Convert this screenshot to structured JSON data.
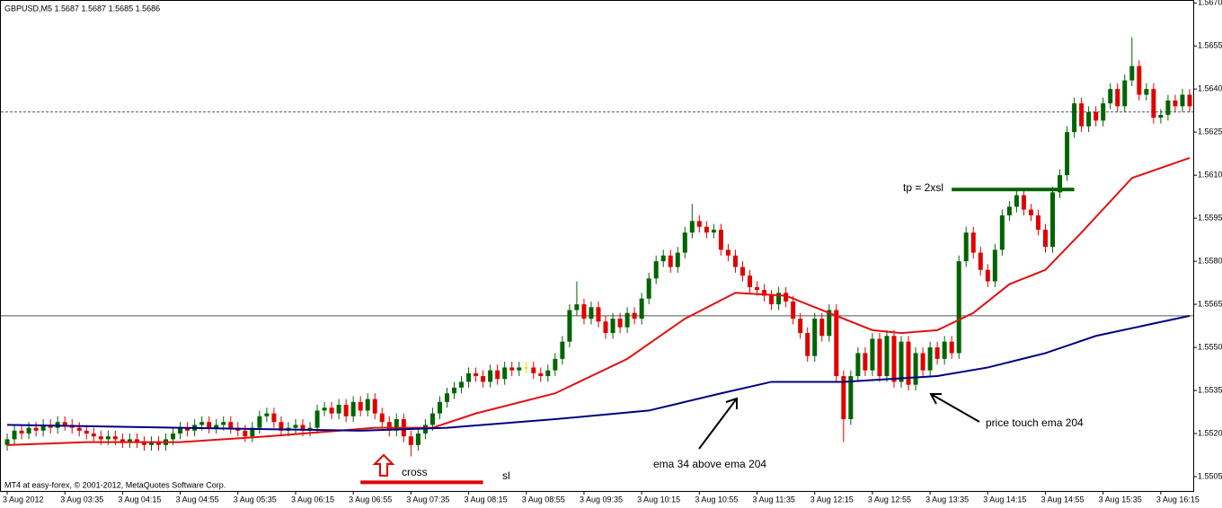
{
  "chart_data": {
    "type": "candlestick",
    "header": "GBPUSD,M5  1.5687 1.5687 1.5685 1.5686",
    "footer": "MT4 at easy-forex, © 2001-2012, MetaQuotes Software Corp.",
    "annotations": {
      "cross": "cross",
      "sl": "sl",
      "tp": "tp = 2xsl",
      "ema_above": "ema 34 above ema 204",
      "price_touch": "price touch ema 204"
    },
    "up_color": "#006400",
    "down_color": "#e00000",
    "flat_color": "#e6d800",
    "categories": [
      "3 Aug 2012",
      null,
      null,
      null,
      null,
      null,
      null,
      null,
      "3 Aug 03:35",
      null,
      null,
      null,
      null,
      null,
      null,
      null,
      "3 Aug 04:15",
      null,
      null,
      null,
      null,
      null,
      null,
      null,
      "3 Aug 04:55",
      null,
      null,
      null,
      null,
      null,
      null,
      null,
      "3 Aug 05:35",
      null,
      null,
      null,
      null,
      null,
      null,
      null,
      "3 Aug 06:15",
      null,
      null,
      null,
      null,
      null,
      null,
      null,
      "3 Aug 06:55",
      null,
      null,
      null,
      null,
      null,
      null,
      null,
      "3 Aug 07:35",
      null,
      null,
      null,
      null,
      null,
      null,
      null,
      "3 Aug 08:15",
      null,
      null,
      null,
      null,
      null,
      null,
      null,
      "3 Aug 08:55",
      null,
      null,
      null,
      null,
      null,
      null,
      null,
      "3 Aug 09:35",
      null,
      null,
      null,
      null,
      null,
      null,
      null,
      "3 Aug 10:15",
      null,
      null,
      null,
      null,
      null,
      null,
      null,
      "3 Aug 10:55",
      null,
      null,
      null,
      null,
      null,
      null,
      null,
      "3 Aug 11:35",
      null,
      null,
      null,
      null,
      null,
      null,
      null,
      "3 Aug 12:15",
      null,
      null,
      null,
      null,
      null,
      null,
      null,
      "3 Aug 12:55",
      null,
      null,
      null,
      null,
      null,
      null,
      null,
      "3 Aug 13:35",
      null,
      null,
      null,
      null,
      null,
      null,
      null,
      "3 Aug 14:15",
      null,
      null,
      null,
      null,
      null,
      null,
      null,
      "3 Aug 14:55",
      null,
      null,
      null,
      null,
      null,
      null,
      null,
      "3 Aug 15:35",
      null,
      null,
      null,
      null,
      null,
      null,
      null,
      "3 Aug 16:15",
      null,
      null,
      null,
      null
    ],
    "open": [
      1.5516,
      1.5518,
      1.5521,
      1.552,
      1.5522,
      1.5521,
      1.5523,
      1.5522,
      1.5524,
      1.5523,
      1.5522,
      1.5521,
      1.552,
      1.5519,
      1.5518,
      1.5519,
      1.5518,
      1.5517,
      1.5518,
      1.5517,
      1.5516,
      1.5517,
      1.5516,
      1.5518,
      1.552,
      1.5522,
      1.5521,
      1.5523,
      1.5524,
      1.5522,
      1.5523,
      1.5524,
      1.5522,
      1.5521,
      1.5519,
      1.5522,
      1.5526,
      1.5527,
      1.5524,
      1.5521,
      1.5522,
      1.5523,
      1.5521,
      1.5522,
      1.5528,
      1.5529,
      1.5527,
      1.553,
      1.5526,
      1.5531,
      1.5528,
      1.5532,
      1.5527,
      1.5524,
      1.5521,
      1.5525,
      1.5519,
      1.5516,
      1.552,
      1.5523,
      1.5527,
      1.5531,
      1.5534,
      1.5536,
      1.5538,
      1.5541,
      1.554,
      1.5538,
      1.5542,
      1.5539,
      1.5543,
      1.5542,
      1.5543,
      1.5543,
      1.5541,
      1.554,
      1.5542,
      1.5546,
      1.5552,
      1.5563,
      1.5565,
      1.556,
      1.5564,
      1.5559,
      1.5555,
      1.556,
      1.5557,
      1.5562,
      1.556,
      1.5567,
      1.5574,
      1.558,
      1.5582,
      1.5578,
      1.5583,
      1.559,
      1.5594,
      1.5592,
      1.559,
      1.5591,
      1.5584,
      1.5582,
      1.5578,
      1.5575,
      1.5571,
      1.557,
      1.5568,
      1.5565,
      1.5569,
      1.5566,
      1.556,
      1.5555,
      1.5547,
      1.556,
      1.5554,
      1.5563,
      1.554,
      1.5525,
      1.554,
      1.5548,
      1.5542,
      1.5553,
      1.554,
      1.5554,
      1.5538,
      1.5552,
      1.5537,
      1.5548,
      1.5542,
      1.555,
      1.5546,
      1.5552,
      1.5548,
      1.558,
      1.559,
      1.5583,
      1.5577,
      1.5573,
      1.5584,
      1.5596,
      1.5599,
      1.5603,
      1.5598,
      1.5596,
      1.5591,
      1.5585,
      1.5604,
      1.561,
      1.5625,
      1.5635,
      1.5627,
      1.5632,
      1.5629,
      1.5635,
      1.564,
      1.5634,
      1.5643,
      1.5648,
      1.5638,
      1.564,
      1.563,
      1.5631,
      1.5636,
      1.5634,
      1.5638
    ],
    "high": [
      1.552,
      1.5523,
      1.5523,
      1.5524,
      1.5524,
      1.5525,
      1.5525,
      1.5526,
      1.5526,
      1.5525,
      1.5524,
      1.5523,
      1.5522,
      1.5521,
      1.5521,
      1.5521,
      1.552,
      1.552,
      1.552,
      1.5519,
      1.5519,
      1.5519,
      1.552,
      1.5522,
      1.5524,
      1.5524,
      1.5525,
      1.5526,
      1.5526,
      1.5525,
      1.5526,
      1.5526,
      1.5524,
      1.5523,
      1.5524,
      1.5528,
      1.5529,
      1.5529,
      1.5526,
      1.5524,
      1.5525,
      1.5525,
      1.5524,
      1.553,
      1.5531,
      1.5531,
      1.5532,
      1.5532,
      1.5533,
      1.5533,
      1.5534,
      1.5534,
      1.5529,
      1.5526,
      1.5527,
      1.5527,
      1.5521,
      1.5522,
      1.5525,
      1.5529,
      1.5533,
      1.5536,
      1.5538,
      1.554,
      1.5543,
      1.5543,
      1.5542,
      1.5544,
      1.5544,
      1.5545,
      1.5545,
      1.5545,
      1.5545,
      1.5545,
      1.5543,
      1.5544,
      1.5548,
      1.5554,
      1.5565,
      1.5573,
      1.5567,
      1.5566,
      1.5566,
      1.5561,
      1.5562,
      1.5562,
      1.5564,
      1.5564,
      1.5569,
      1.5576,
      1.5582,
      1.5584,
      1.5584,
      1.5585,
      1.5592,
      1.56,
      1.5596,
      1.5594,
      1.5593,
      1.5593,
      1.5586,
      1.5584,
      1.558,
      1.5577,
      1.5573,
      1.5572,
      1.557,
      1.5571,
      1.5571,
      1.5568,
      1.5562,
      1.5557,
      1.5562,
      1.5562,
      1.5565,
      1.5565,
      1.5542,
      1.5542,
      1.555,
      1.555,
      1.5555,
      1.5555,
      1.5556,
      1.5556,
      1.5554,
      1.5554,
      1.555,
      1.555,
      1.5552,
      1.5552,
      1.5554,
      1.5554,
      1.5582,
      1.5592,
      1.5592,
      1.5585,
      1.5579,
      1.5586,
      1.5598,
      1.5601,
      1.5605,
      1.5605,
      1.56,
      1.5598,
      1.5593,
      1.5606,
      1.5612,
      1.5627,
      1.5637,
      1.5637,
      1.5634,
      1.5634,
      1.5637,
      1.5642,
      1.5642,
      1.5645,
      1.5658,
      1.565,
      1.5642,
      1.5642,
      1.5633,
      1.5638,
      1.5638,
      1.564,
      1.564
    ],
    "low": [
      1.5514,
      1.5516,
      1.5518,
      1.5518,
      1.5519,
      1.5519,
      1.552,
      1.552,
      1.5521,
      1.552,
      1.5519,
      1.5518,
      1.5517,
      1.5516,
      1.5516,
      1.5516,
      1.5515,
      1.5515,
      1.5515,
      1.5514,
      1.5514,
      1.5514,
      1.5514,
      1.5516,
      1.5518,
      1.5519,
      1.5519,
      1.5521,
      1.552,
      1.552,
      1.5521,
      1.552,
      1.5519,
      1.5517,
      1.5517,
      1.552,
      1.5524,
      1.5522,
      1.5519,
      1.5519,
      1.552,
      1.5519,
      1.5519,
      1.552,
      1.5526,
      1.5525,
      1.5525,
      1.5524,
      1.5524,
      1.5526,
      1.5526,
      1.5525,
      1.5522,
      1.5519,
      1.5519,
      1.5517,
      1.5512,
      1.5514,
      1.5518,
      1.5521,
      1.5525,
      1.5529,
      1.5532,
      1.5534,
      1.5536,
      1.5538,
      1.5536,
      1.5536,
      1.5537,
      1.5537,
      1.554,
      1.554,
      1.5541,
      1.5539,
      1.5538,
      1.5538,
      1.554,
      1.5544,
      1.555,
      1.5561,
      1.5558,
      1.5558,
      1.5557,
      1.5553,
      1.5553,
      1.5555,
      1.5555,
      1.5558,
      1.5558,
      1.5565,
      1.5572,
      1.5578,
      1.5576,
      1.5576,
      1.5581,
      1.5588,
      1.559,
      1.5588,
      1.5588,
      1.5582,
      1.558,
      1.5576,
      1.5573,
      1.5569,
      1.5568,
      1.5566,
      1.5563,
      1.5563,
      1.5564,
      1.5558,
      1.5553,
      1.5545,
      1.5545,
      1.5552,
      1.5552,
      1.5538,
      1.5517,
      1.5523,
      1.5538,
      1.554,
      1.554,
      1.5538,
      1.5538,
      1.5536,
      1.5536,
      1.5535,
      1.5535,
      1.554,
      1.554,
      1.5544,
      1.5544,
      1.5546,
      1.5546,
      1.5578,
      1.5581,
      1.5575,
      1.5571,
      1.5571,
      1.5582,
      1.5594,
      1.5597,
      1.5596,
      1.5594,
      1.5589,
      1.5583,
      1.5583,
      1.5602,
      1.5608,
      1.5623,
      1.5625,
      1.5625,
      1.5627,
      1.5627,
      1.5633,
      1.5632,
      1.5632,
      1.5641,
      1.5636,
      1.5636,
      1.5628,
      1.5628,
      1.5629,
      1.5632,
      1.5632,
      1.5632
    ],
    "close": [
      1.5518,
      1.5521,
      1.552,
      1.5522,
      1.5521,
      1.5523,
      1.5522,
      1.5524,
      1.5523,
      1.5522,
      1.5521,
      1.552,
      1.5519,
      1.5518,
      1.5519,
      1.5518,
      1.5517,
      1.5518,
      1.5517,
      1.5516,
      1.5517,
      1.5516,
      1.5518,
      1.552,
      1.5522,
      1.5521,
      1.5523,
      1.5524,
      1.5522,
      1.5523,
      1.5524,
      1.5522,
      1.5521,
      1.5519,
      1.5522,
      1.5526,
      1.5527,
      1.5524,
      1.5521,
      1.5522,
      1.5523,
      1.5521,
      1.5522,
      1.5528,
      1.5529,
      1.5527,
      1.553,
      1.5526,
      1.5531,
      1.5528,
      1.5532,
      1.5527,
      1.5524,
      1.5521,
      1.5525,
      1.5519,
      1.5516,
      1.552,
      1.5523,
      1.5527,
      1.5531,
      1.5534,
      1.5536,
      1.5538,
      1.5541,
      1.554,
      1.5538,
      1.5542,
      1.5539,
      1.5543,
      1.5542,
      1.5543,
      1.5543,
      1.5541,
      1.554,
      1.5542,
      1.5546,
      1.5552,
      1.5563,
      1.5565,
      1.556,
      1.5564,
      1.5559,
      1.5555,
      1.556,
      1.5557,
      1.5562,
      1.556,
      1.5567,
      1.5574,
      1.558,
      1.5582,
      1.5578,
      1.5583,
      1.559,
      1.5594,
      1.5592,
      1.559,
      1.5591,
      1.5584,
      1.5582,
      1.5578,
      1.5575,
      1.5571,
      1.557,
      1.5568,
      1.5565,
      1.5569,
      1.5566,
      1.556,
      1.5555,
      1.5547,
      1.556,
      1.5554,
      1.5563,
      1.554,
      1.5525,
      1.554,
      1.5548,
      1.5542,
      1.5553,
      1.554,
      1.5554,
      1.5538,
      1.5552,
      1.5537,
      1.5548,
      1.5542,
      1.555,
      1.5546,
      1.5552,
      1.5548,
      1.558,
      1.559,
      1.5583,
      1.5577,
      1.5573,
      1.5584,
      1.5596,
      1.5599,
      1.5603,
      1.5598,
      1.5596,
      1.5591,
      1.5585,
      1.5604,
      1.561,
      1.5625,
      1.5635,
      1.5627,
      1.5632,
      1.5629,
      1.5635,
      1.564,
      1.5634,
      1.5643,
      1.5648,
      1.5638,
      1.564,
      1.563,
      1.5631,
      1.5636,
      1.5634,
      1.5638,
      1.5634
    ],
    "lines": [
      {
        "color": "#e01010",
        "x": [
          0,
          11,
          24,
          36,
          51,
          59,
          65,
          76,
          86,
          94,
          101,
          108,
          114,
          120,
          124,
          129,
          134,
          139,
          144,
          149,
          156,
          164
        ],
        "values": [
          1.5516,
          1.5517,
          1.5517,
          1.5519,
          1.5522,
          1.5522,
          1.5527,
          1.5534,
          1.5546,
          1.556,
          1.5569,
          1.5568,
          1.5562,
          1.5556,
          1.5555,
          1.5556,
          1.5562,
          1.5572,
          1.5577,
          1.559,
          1.5609,
          1.5616
        ]
      },
      {
        "color": "#000080",
        "x": [
          0,
          24,
          49,
          61,
          76,
          89,
          99,
          106,
          116,
          129,
          136,
          144,
          151,
          164
        ],
        "values": [
          1.5523,
          1.5522,
          1.5521,
          1.5522,
          1.5525,
          1.5528,
          1.5534,
          1.5538,
          1.5538,
          1.554,
          1.5543,
          1.5548,
          1.5554,
          1.5561
        ]
      }
    ],
    "bid_line": 1.5632,
    "hline": 1.5561,
    "tp_line": {
      "value": 1.5605,
      "x": [
        131,
        148
      ],
      "color": "#006400"
    },
    "sl_line": {
      "value": 1.5503,
      "x": [
        49,
        66
      ],
      "color": "#e00000"
    },
    "ylim": [
      1.55,
      1.5671
    ],
    "yticks": [
      {
        "value": 1.567,
        "label": "1.5670"
      },
      1.5655,
      {
        "value": 1.564,
        "label": "1.5640"
      },
      1.5625,
      {
        "value": 1.561,
        "label": "1.5610"
      },
      1.5595,
      {
        "value": 1.558,
        "label": "1.5580"
      },
      1.5565,
      {
        "value": 1.555,
        "label": "1.5550"
      },
      1.5535,
      {
        "value": 1.552,
        "label": "1.5520"
      },
      1.5505
    ]
  }
}
